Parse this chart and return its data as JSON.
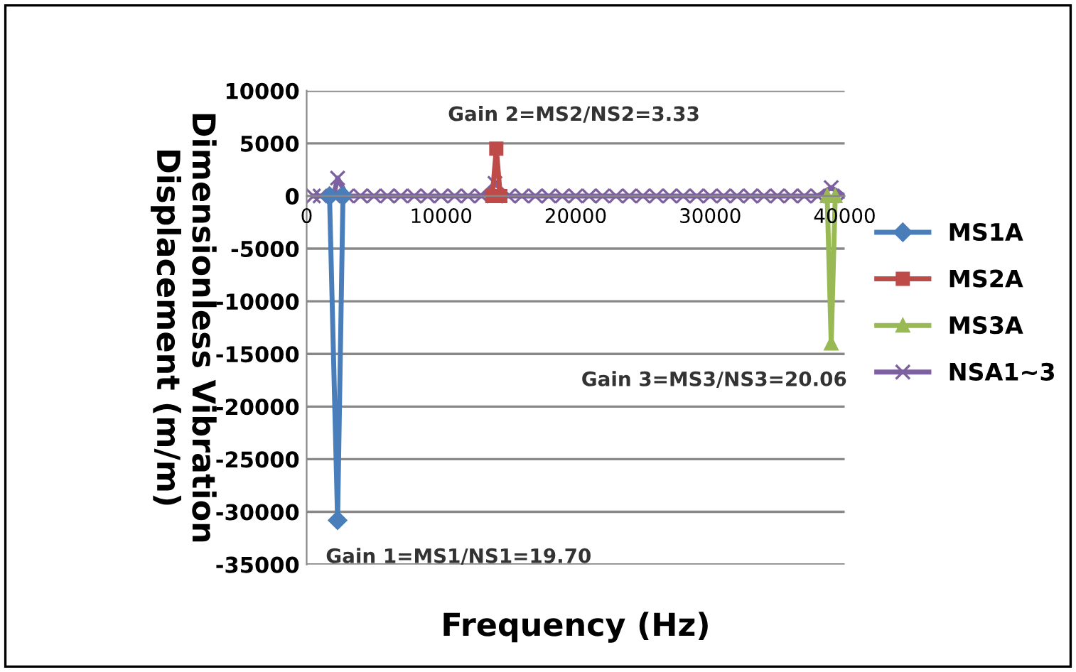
{
  "chart_data": {
    "type": "line",
    "xlabel": "Frequency (Hz)",
    "ylabel": "Dimensionless Vibration\nDisplacement (m/m)",
    "x": [
      500,
      1000,
      2000,
      2300,
      3000,
      4000,
      5000,
      6000,
      7000,
      8000,
      9000,
      10000,
      11000,
      12000,
      13000,
      14000,
      15000,
      16000,
      17000,
      18000,
      19000,
      20000,
      21000,
      22000,
      23000,
      24000,
      25000,
      26000,
      27000,
      28000,
      29000,
      30000,
      31000,
      32000,
      33000,
      34000,
      35000,
      36000,
      37000,
      38000,
      39000,
      40000
    ],
    "series": [
      {
        "name": "MS1A",
        "color": "#4a7ebb",
        "marker": "diamond",
        "x": [
          1700,
          2300,
          2700
        ],
        "values": [
          0,
          -30800,
          0
        ]
      },
      {
        "name": "MS2A",
        "color": "#be4b48",
        "marker": "square",
        "x": [
          13800,
          14100,
          14400
        ],
        "values": [
          0,
          4500,
          0
        ]
      },
      {
        "name": "MS3A",
        "color": "#98b954",
        "marker": "triangle",
        "x": [
          38700,
          39000,
          39300
        ],
        "values": [
          0,
          -14000,
          0
        ]
      },
      {
        "name": "NSA1~3",
        "color": "#7d60a0",
        "marker": "cross",
        "values": [
          0,
          0,
          0,
          1700,
          0,
          0,
          0,
          0,
          0,
          0,
          0,
          0,
          0,
          0,
          0,
          1200,
          0,
          0,
          0,
          0,
          0,
          0,
          0,
          0,
          0,
          0,
          0,
          0,
          0,
          0,
          0,
          0,
          0,
          0,
          0,
          0,
          0,
          0,
          0,
          0,
          800,
          0
        ]
      }
    ],
    "xlim": [
      0,
      40000
    ],
    "xticks": [
      0,
      10000,
      20000,
      30000,
      40000
    ],
    "ylim": [
      -35000,
      10000
    ],
    "yticks": [
      -35000,
      -30000,
      -25000,
      -20000,
      -15000,
      -10000,
      -5000,
      0,
      5000,
      10000
    ],
    "grid": "y",
    "legend": "right",
    "annotations": [
      {
        "text": "Gain 1=MS1/NS1=19.70",
        "x": 2300,
        "y": -30800
      },
      {
        "text": "Gain 2=MS2/NS2=3.33",
        "x": 14000,
        "y": 4500
      },
      {
        "text": "Gain 3=MS3/NS3=20.06",
        "x": 39000,
        "y": -14000
      }
    ]
  }
}
